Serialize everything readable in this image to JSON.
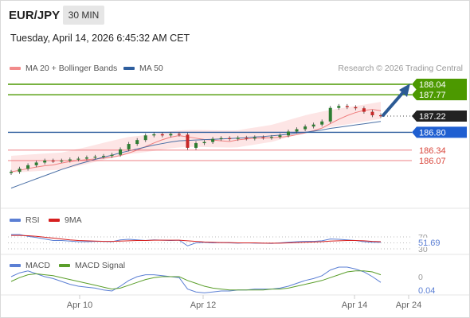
{
  "header": {
    "symbol": "EUR/JPY",
    "timeframe": "30 MIN",
    "datetime": "Tuesday, April 14, 2026 6:45:32 AM CET"
  },
  "legend": {
    "ma20": "MA 20 + Bollinger Bands",
    "ma50": "MA 50",
    "rsi": "RSI",
    "rsi_ma": "9MA",
    "macd": "MACD",
    "macd_signal": "MACD Signal"
  },
  "credit": "Research © 2026 Trading Central",
  "colors": {
    "green": "#4c9900",
    "blue": "#2e5e9e",
    "red": "#e8565d",
    "band": "#fde0e0",
    "ma50": "#4a6fa5",
    "rsi": "#5b7fd4",
    "macd_signal": "#5a9e2a"
  },
  "chart_data": {
    "type": "line",
    "ylim": [
      185.5,
      188.2
    ],
    "levels": [
      {
        "label": "188.04",
        "value": 188.04,
        "role": "target"
      },
      {
        "label": "187.77",
        "value": 187.77,
        "role": "target"
      },
      {
        "label": "187.22",
        "value": 187.22,
        "role": "last"
      },
      {
        "label": "186.80",
        "value": 186.8,
        "role": "pivot"
      },
      {
        "label": "186.34",
        "value": 186.34,
        "role": "support"
      },
      {
        "label": "186.07",
        "value": 186.07,
        "role": "support"
      }
    ],
    "x_ticks": [
      "Apr 10",
      "Apr 12",
      "Apr 14",
      "Apr 24"
    ],
    "close_series": [
      185.78,
      185.86,
      185.95,
      186.02,
      186.07,
      186.06,
      186.07,
      186.1,
      186.12,
      186.15,
      186.17,
      186.19,
      186.22,
      186.36,
      186.5,
      186.6,
      186.72,
      186.75,
      186.72,
      186.76,
      186.74,
      186.4,
      186.52,
      186.55,
      186.63,
      186.65,
      186.63,
      186.66,
      186.64,
      186.67,
      186.66,
      186.68,
      186.72,
      186.82,
      186.88,
      186.95,
      187.0,
      187.08,
      187.43,
      187.48,
      187.45,
      187.42,
      187.33,
      187.24,
      187.22
    ],
    "ma50_series": [
      185.36,
      185.44,
      185.52,
      185.6,
      185.68,
      185.76,
      185.84,
      185.91,
      185.98,
      186.04,
      186.1,
      186.16,
      186.21,
      186.27,
      186.32,
      186.37,
      186.42,
      186.47,
      186.51,
      186.55,
      186.58,
      186.59,
      186.6,
      186.61,
      186.62,
      186.63,
      186.64,
      186.65,
      186.66,
      186.68,
      186.69,
      186.71,
      186.73,
      186.75,
      186.78,
      186.8,
      186.83,
      186.86,
      186.9,
      186.93,
      186.96,
      186.99,
      187.02,
      187.05,
      187.08
    ],
    "rsi": {
      "ticks": [
        "70",
        "30"
      ],
      "last_label": "51.69",
      "last": 51.69,
      "values": [
        78,
        78,
        72,
        68,
        63,
        58,
        58,
        56,
        54,
        54,
        55,
        55,
        54,
        60,
        62,
        60,
        58,
        60,
        59,
        58,
        59,
        40,
        50,
        52,
        50,
        51,
        50,
        49,
        50,
        49,
        49,
        48,
        50,
        52,
        54,
        55,
        55,
        57,
        63,
        62,
        60,
        58,
        54,
        52,
        52
      ],
      "ma_values": [
        75,
        75,
        74,
        72,
        69,
        66,
        63,
        60,
        58,
        57,
        56,
        55,
        55,
        56,
        57,
        58,
        58,
        59,
        59,
        59,
        59,
        57,
        55,
        53,
        52,
        51,
        51,
        50,
        50,
        50,
        49,
        49,
        49,
        50,
        51,
        52,
        53,
        54,
        56,
        57,
        58,
        58,
        57,
        55,
        54
      ]
    },
    "macd": {
      "ticks": [
        "0",
        "0.04"
      ],
      "last_label": "0.04",
      "last": 0.04,
      "values": [
        0.1,
        0.14,
        0.16,
        0.13,
        0.1,
        0.08,
        0.05,
        0.02,
        0.0,
        -0.01,
        -0.02,
        -0.04,
        -0.05,
        0.0,
        0.06,
        0.1,
        0.12,
        0.12,
        0.11,
        0.1,
        0.09,
        -0.03,
        -0.06,
        -0.07,
        -0.06,
        -0.05,
        -0.05,
        -0.04,
        -0.04,
        -0.03,
        -0.03,
        -0.03,
        -0.02,
        0.0,
        0.03,
        0.06,
        0.08,
        0.11,
        0.17,
        0.2,
        0.2,
        0.18,
        0.15,
        0.1,
        0.04
      ],
      "signal_values": [
        0.05,
        0.09,
        0.12,
        0.13,
        0.12,
        0.11,
        0.09,
        0.07,
        0.05,
        0.03,
        0.01,
        -0.01,
        -0.03,
        -0.02,
        0.01,
        0.04,
        0.07,
        0.09,
        0.1,
        0.1,
        0.1,
        0.06,
        0.03,
        0.0,
        -0.02,
        -0.03,
        -0.04,
        -0.04,
        -0.04,
        -0.04,
        -0.04,
        -0.03,
        -0.03,
        -0.02,
        0.0,
        0.02,
        0.04,
        0.06,
        0.09,
        0.12,
        0.15,
        0.16,
        0.16,
        0.15,
        0.12
      ]
    }
  }
}
